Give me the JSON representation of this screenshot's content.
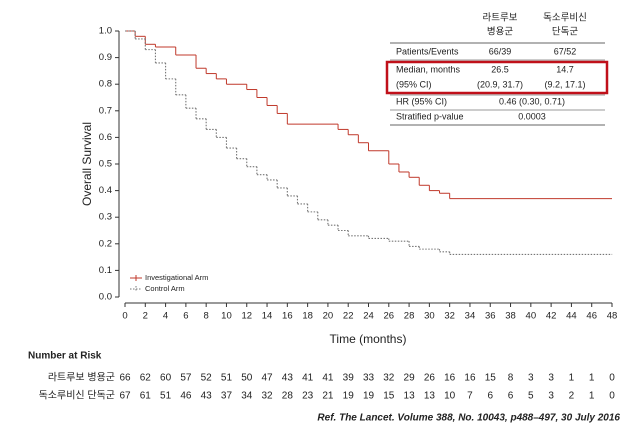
{
  "chart_data": {
    "type": "step",
    "y_label": "Overall Survival",
    "x_label": "Time (months)",
    "xlim": [
      0,
      48
    ],
    "xticks": [
      0,
      2,
      4,
      6,
      8,
      10,
      12,
      14,
      16,
      18,
      20,
      22,
      24,
      26,
      28,
      30,
      32,
      34,
      36,
      38,
      40,
      42,
      44,
      46,
      48
    ],
    "ylim": [
      0,
      1
    ],
    "yticks": [
      {
        "value": 0,
        "label": "0.0"
      },
      {
        "value": 0.1,
        "label": "0.1"
      },
      {
        "value": 0.2,
        "label": "0.2"
      },
      {
        "value": 0.3,
        "label": "0.3"
      },
      {
        "value": 0.4,
        "label": "0.4"
      },
      {
        "value": 0.5,
        "label": "0.5"
      },
      {
        "value": 0.6,
        "label": "0.6"
      },
      {
        "value": 0.7,
        "label": "0.7"
      },
      {
        "value": 0.8,
        "label": "0.8"
      },
      {
        "value": 0.9,
        "label": "0.9"
      },
      {
        "value": 1,
        "label": "1.0"
      }
    ],
    "series": [
      {
        "name": "Investigational Arm",
        "color": "#c0392b",
        "dash": false,
        "x": [
          0,
          1,
          2,
          3,
          5,
          7,
          8,
          9,
          10,
          12,
          13,
          14,
          15,
          16,
          21,
          22,
          23,
          24,
          26,
          27,
          28,
          29,
          30,
          31,
          32,
          48
        ],
        "values": [
          1.0,
          0.98,
          0.95,
          0.94,
          0.91,
          0.86,
          0.84,
          0.82,
          0.8,
          0.78,
          0.75,
          0.72,
          0.69,
          0.65,
          0.63,
          0.61,
          0.58,
          0.55,
          0.5,
          0.47,
          0.45,
          0.42,
          0.4,
          0.39,
          0.37,
          0.37
        ]
      },
      {
        "name": "Control Arm",
        "color": "#777777",
        "dash": true,
        "x": [
          0,
          1,
          2,
          3,
          4,
          5,
          6,
          7,
          8,
          9,
          10,
          11,
          12,
          13,
          14,
          15,
          16,
          17,
          18,
          19,
          20,
          21,
          22,
          24,
          26,
          28,
          29,
          31,
          32,
          48
        ],
        "values": [
          1.0,
          0.97,
          0.93,
          0.88,
          0.82,
          0.76,
          0.71,
          0.67,
          0.63,
          0.6,
          0.56,
          0.52,
          0.49,
          0.46,
          0.44,
          0.41,
          0.38,
          0.35,
          0.32,
          0.29,
          0.27,
          0.25,
          0.23,
          0.22,
          0.21,
          0.19,
          0.18,
          0.17,
          0.16,
          0.16
        ]
      }
    ]
  },
  "inset_table": {
    "headers": [
      [
        "라트루보",
        "병용군"
      ],
      [
        "독소루비신",
        "단독군"
      ]
    ],
    "rows": [
      [
        "Patients/Events",
        "66/39",
        "67/52"
      ],
      [
        "Median, months",
        "26.5",
        "14.7"
      ],
      [
        "(95% CI)",
        "(20.9, 31.7)",
        "(9.2, 17.1)"
      ],
      [
        "HR (95% CI)",
        "0.46 (0.30, 0.71)"
      ],
      [
        "Stratified p-value",
        "0.0003"
      ]
    ]
  },
  "risk_table": {
    "title": "Number at Risk",
    "rows": [
      {
        "label": "라트루보 병용군",
        "counts": [
          "66",
          "62",
          "60",
          "57",
          "52",
          "51",
          "50",
          "47",
          "43",
          "41",
          "41",
          "39",
          "33",
          "32",
          "29",
          "26",
          "16",
          "16",
          "15",
          "8",
          "3",
          "3",
          "1",
          "1",
          "0"
        ]
      },
      {
        "label": "독소루비신 단독군",
        "counts": [
          "67",
          "61",
          "51",
          "46",
          "43",
          "37",
          "34",
          "32",
          "28",
          "23",
          "21",
          "19",
          "19",
          "15",
          "13",
          "13",
          "10",
          "7",
          "6",
          "6",
          "5",
          "3",
          "2",
          "1",
          "0"
        ]
      }
    ]
  },
  "reference": "Ref. The Lancet. Volume 388, No. 10043, p488–497, 30 July 2016"
}
